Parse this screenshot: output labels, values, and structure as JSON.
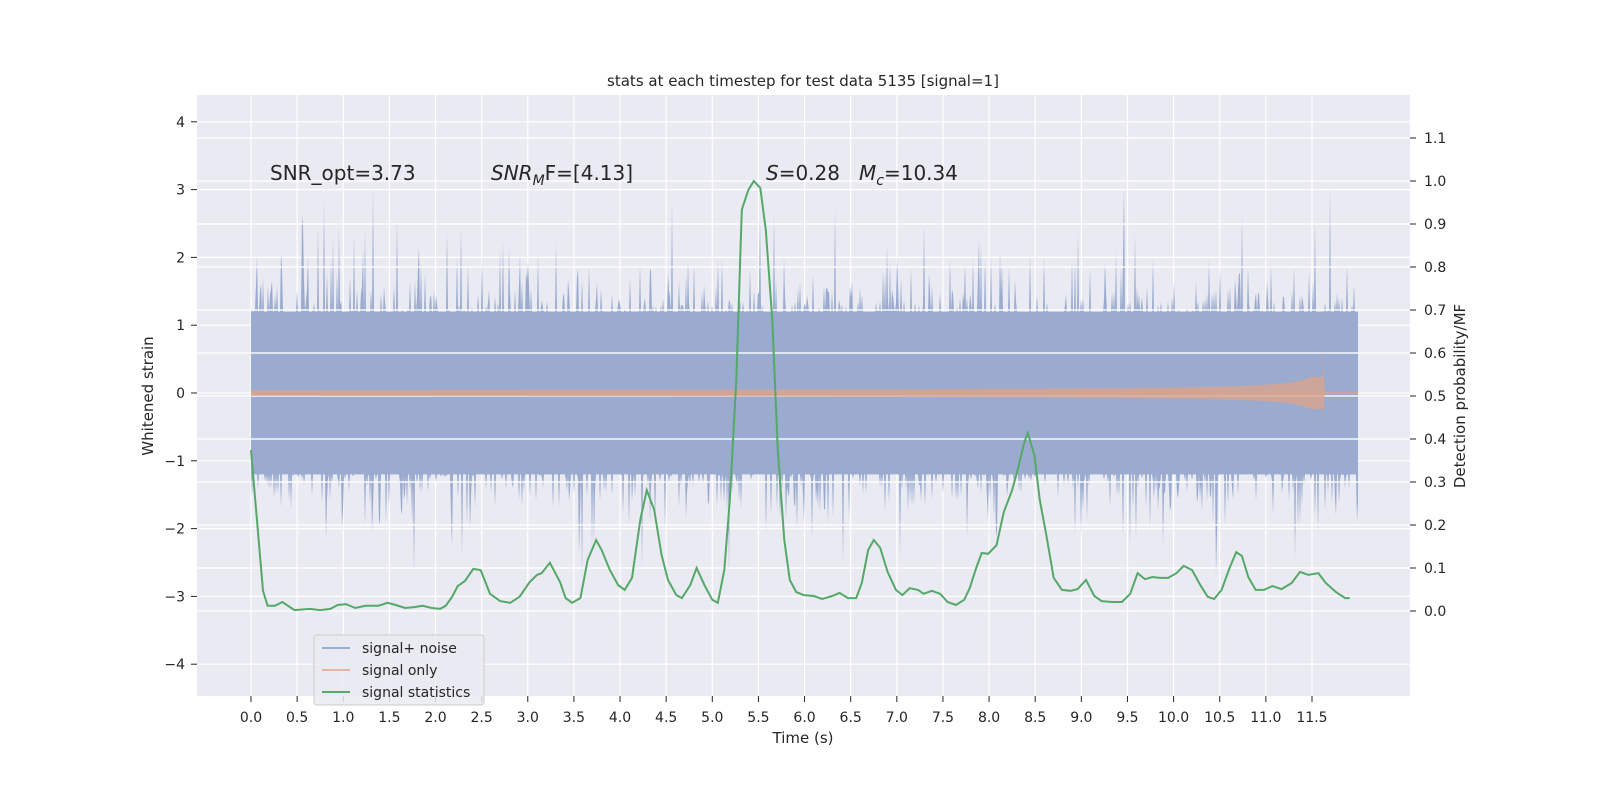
{
  "chart_data": {
    "type": "line",
    "title": "stats at each timestep for test data 5135 [signal=1]",
    "xlabel": "Time (s)",
    "ylabel": "Whitened strain",
    "ylabel_right": "Detection probability/MF",
    "xlim": [
      -0.6,
      12.6
    ],
    "ylim": [
      -4.45,
      4.4
    ],
    "ylim_right": [
      -0.2,
      1.2
    ],
    "grid": true,
    "legend_position": "lower-left",
    "x_ticks": [
      "0.0",
      "0.5",
      "1.0",
      "1.5",
      "2.0",
      "2.5",
      "3.0",
      "3.5",
      "4.0",
      "4.5",
      "5.0",
      "5.5",
      "6.0",
      "6.5",
      "7.0",
      "7.5",
      "8.0",
      "8.5",
      "9.0",
      "9.5",
      "10.0",
      "10.5",
      "11.0",
      "11.5"
    ],
    "y_ticks": [
      "4",
      "3",
      "2",
      "1",
      "0",
      "−1",
      "−2",
      "−3",
      "−4"
    ],
    "y_ticks_right": [
      "1.1",
      "1.0",
      "0.9",
      "0.8",
      "0.7",
      "0.6",
      "0.5",
      "0.4",
      "0.3",
      "0.2",
      "0.1",
      "0.0"
    ],
    "annotations": {
      "snr_opt": "SNR_opt=3.73",
      "snr_mf_main": "SNR",
      "snr_mf_sub": "M",
      "snr_mf_rest": "F=[4.13]",
      "s_var": "S",
      "s_val": "=0.28",
      "mc_var": "M",
      "mc_sub": "c",
      "mc_val": "=10.34"
    },
    "legend": [
      "signal+ noise",
      "signal only",
      "signal statistics"
    ],
    "colors": {
      "noise": "#4c72b0",
      "signal": "#dd8452",
      "stats": "#55a868",
      "background": "#eaeaf2"
    },
    "noise": {
      "name": "signal+ noise",
      "duration_s": 12.0,
      "core_amplitude": 1.2,
      "typical_peak": 2.5,
      "max_peak": 4.0
    },
    "signal": {
      "name": "signal only",
      "type": "chirp",
      "merger_time_s": 11.62,
      "peak_amplitude_pos": 0.7,
      "peak_amplitude_neg": -0.55
    },
    "series": [
      {
        "name": "signal statistics",
        "axis": "right",
        "t": [
          0,
          0.13,
          0.18,
          0.26,
          0.34,
          0.47,
          0.64,
          0.75,
          0.86,
          0.94,
          1.03,
          1.13,
          1.24,
          1.38,
          1.48,
          1.57,
          1.67,
          1.77,
          1.86,
          1.96,
          2.05,
          2.11,
          2.18,
          2.24,
          2.32,
          2.41,
          2.49,
          2.59,
          2.7,
          2.81,
          2.91,
          3.02,
          3.1,
          3.15,
          3.24,
          3.35,
          3.41,
          3.48,
          3.57,
          3.65,
          3.74,
          3.8,
          3.89,
          3.98,
          4.05,
          4.13,
          4.22,
          4.29,
          4.37,
          4.45,
          4.52,
          4.61,
          4.67,
          4.76,
          4.83,
          4.92,
          5.0,
          5.06,
          5.13,
          5.19,
          5.26,
          5.32,
          5.39,
          5.45,
          5.52,
          5.58,
          5.65,
          5.71,
          5.78,
          5.84,
          5.91,
          5.99,
          6.1,
          6.19,
          6.3,
          6.38,
          6.47,
          6.56,
          6.62,
          6.69,
          6.75,
          6.82,
          6.9,
          6.99,
          7.06,
          7.14,
          7.23,
          7.29,
          7.38,
          7.47,
          7.55,
          7.64,
          7.73,
          7.79,
          7.86,
          7.92,
          7.99,
          8.08,
          8.16,
          8.25,
          8.31,
          8.38,
          8.42,
          8.49,
          8.55,
          8.62,
          8.7,
          8.79,
          8.88,
          8.96,
          9.05,
          9.14,
          9.22,
          9.33,
          9.44,
          9.53,
          9.61,
          9.69,
          9.77,
          9.85,
          9.94,
          10.03,
          10.11,
          10.2,
          10.29,
          10.37,
          10.44,
          10.52,
          10.61,
          10.68,
          10.74,
          10.81,
          10.89,
          10.98,
          11.07,
          11.17,
          11.28,
          11.37,
          11.46,
          11.57,
          11.65,
          11.76,
          11.86,
          11.91
        ],
        "values": [
          0.374,
          0.047,
          0.012,
          0.012,
          0.021,
          0.002,
          0.005,
          0.002,
          0.005,
          0.014,
          0.016,
          0.007,
          0.012,
          0.012,
          0.019,
          0.014,
          0.007,
          0.009,
          0.012,
          0.007,
          0.005,
          0.012,
          0.033,
          0.058,
          0.07,
          0.098,
          0.095,
          0.04,
          0.023,
          0.019,
          0.033,
          0.067,
          0.084,
          0.088,
          0.112,
          0.067,
          0.03,
          0.019,
          0.03,
          0.119,
          0.165,
          0.142,
          0.095,
          0.06,
          0.049,
          0.077,
          0.212,
          0.281,
          0.235,
          0.13,
          0.072,
          0.037,
          0.03,
          0.06,
          0.1,
          0.058,
          0.026,
          0.019,
          0.095,
          0.258,
          0.537,
          0.933,
          0.979,
          1.0,
          0.984,
          0.886,
          0.677,
          0.374,
          0.165,
          0.072,
          0.044,
          0.037,
          0.035,
          0.028,
          0.035,
          0.042,
          0.03,
          0.03,
          0.065,
          0.142,
          0.165,
          0.147,
          0.091,
          0.049,
          0.037,
          0.053,
          0.049,
          0.04,
          0.047,
          0.04,
          0.021,
          0.014,
          0.026,
          0.053,
          0.1,
          0.135,
          0.133,
          0.153,
          0.23,
          0.281,
          0.328,
          0.391,
          0.414,
          0.363,
          0.258,
          0.177,
          0.077,
          0.049,
          0.047,
          0.051,
          0.072,
          0.035,
          0.023,
          0.021,
          0.021,
          0.04,
          0.088,
          0.074,
          0.079,
          0.077,
          0.077,
          0.088,
          0.105,
          0.095,
          0.06,
          0.033,
          0.028,
          0.049,
          0.102,
          0.137,
          0.128,
          0.079,
          0.049,
          0.049,
          0.058,
          0.051,
          0.065,
          0.091,
          0.084,
          0.088,
          0.065,
          0.044,
          0.03,
          0.03
        ]
      }
    ]
  }
}
